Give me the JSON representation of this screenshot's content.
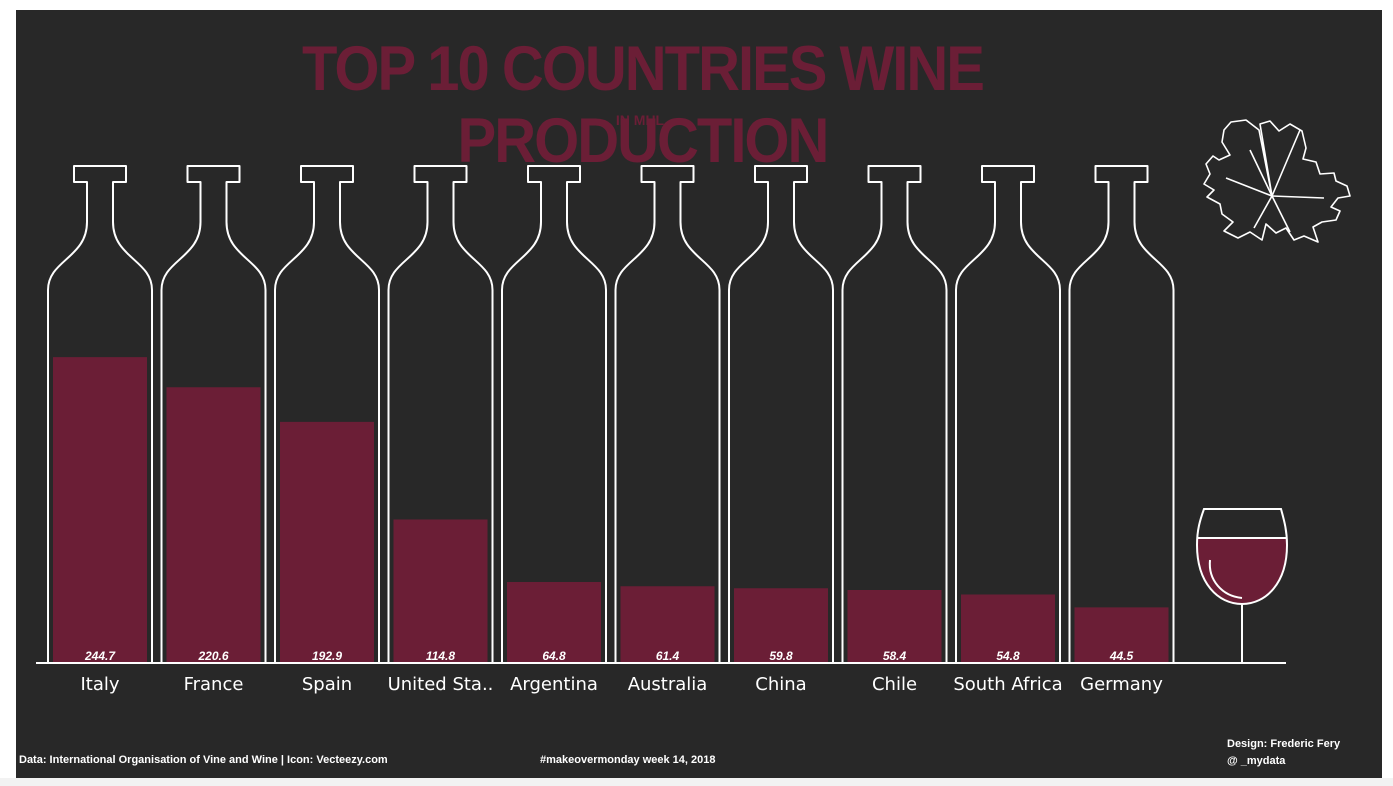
{
  "chart_data": {
    "type": "bar",
    "title": "TOP 10 COUNTRIES WINE PRODUCTION",
    "subtitle": "IN MHL",
    "categories": [
      "Italy",
      "France",
      "Spain",
      "United Sta..",
      "Argentina",
      "Australia",
      "China",
      "Chile",
      "South Africa",
      "Germany"
    ],
    "values": [
      244.7,
      220.6,
      192.9,
      114.8,
      64.8,
      61.4,
      59.8,
      58.4,
      54.8,
      44.5
    ],
    "value_labels": [
      "244.7",
      "220.6",
      "192.9",
      "114.8",
      "64.8",
      "61.4",
      "59.8",
      "58.4",
      "54.8",
      "44.5"
    ],
    "xlabel": "",
    "ylabel": "",
    "ylim": [
      0,
      400
    ],
    "grid": false,
    "legend": "none"
  },
  "footer": {
    "source": "Data: International Organisation of Vine and Wine | Icon: Vecteezy.com",
    "tag": "#makeovermonday week 14, 2018",
    "design_line1": "Design: Frederic Fery",
    "design_line2": "@ _mydata"
  },
  "colors": {
    "background": "#282828",
    "wine": "#6b1e36",
    "outline": "#ffffff"
  },
  "icons": [
    "grape-leaf-icon",
    "wine-glass-icon",
    "wine-bottle-icon"
  ]
}
